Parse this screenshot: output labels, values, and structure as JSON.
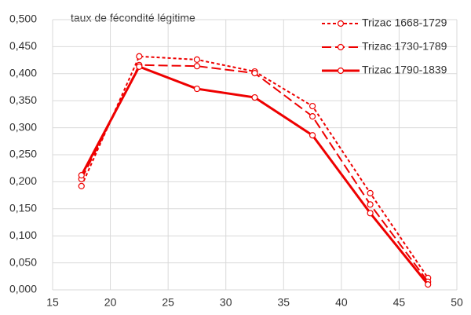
{
  "chart_data": {
    "type": "line",
    "title": "taux de fécondité légitime",
    "xlim": [
      15,
      50
    ],
    "xticks": [
      15,
      20,
      25,
      30,
      35,
      40,
      45,
      50
    ],
    "ylim": [
      0,
      0.5
    ],
    "yticks": [
      {
        "value": 0,
        "label": "0,000"
      },
      {
        "value": 0.05,
        "label": "0,050"
      },
      {
        "value": 0.1,
        "label": "0,100"
      },
      {
        "value": 0.15,
        "label": "0,150"
      },
      {
        "value": 0.2,
        "label": "0,200"
      },
      {
        "value": 0.25,
        "label": "0,250"
      },
      {
        "value": 0.3,
        "label": "0,300"
      },
      {
        "value": 0.35,
        "label": "0,350"
      },
      {
        "value": 0.4,
        "label": "0,400"
      },
      {
        "value": 0.45,
        "label": "0,450"
      },
      {
        "value": 0.5,
        "label": "0,500"
      }
    ],
    "grid": true,
    "legend": "top-right",
    "x": [
      17.5,
      22.5,
      27.5,
      32.5,
      37.5,
      42.5,
      47.5
    ],
    "series": [
      {
        "name": "Trizac 1668-1729",
        "color": "#ee0000",
        "dash": "4,3",
        "values": [
          0.192,
          0.432,
          0.426,
          0.404,
          0.34,
          0.179,
          0.022
        ]
      },
      {
        "name": "Trizac 1730-1789",
        "color": "#ee0000",
        "dash": "12,5",
        "values": [
          0.205,
          0.416,
          0.414,
          0.401,
          0.321,
          0.158,
          0.015
        ]
      },
      {
        "name": "Trizac 1790-1839",
        "color": "#ee0000",
        "dash": "none",
        "values": [
          0.212,
          0.413,
          0.372,
          0.356,
          0.286,
          0.142,
          0.01
        ]
      }
    ]
  }
}
